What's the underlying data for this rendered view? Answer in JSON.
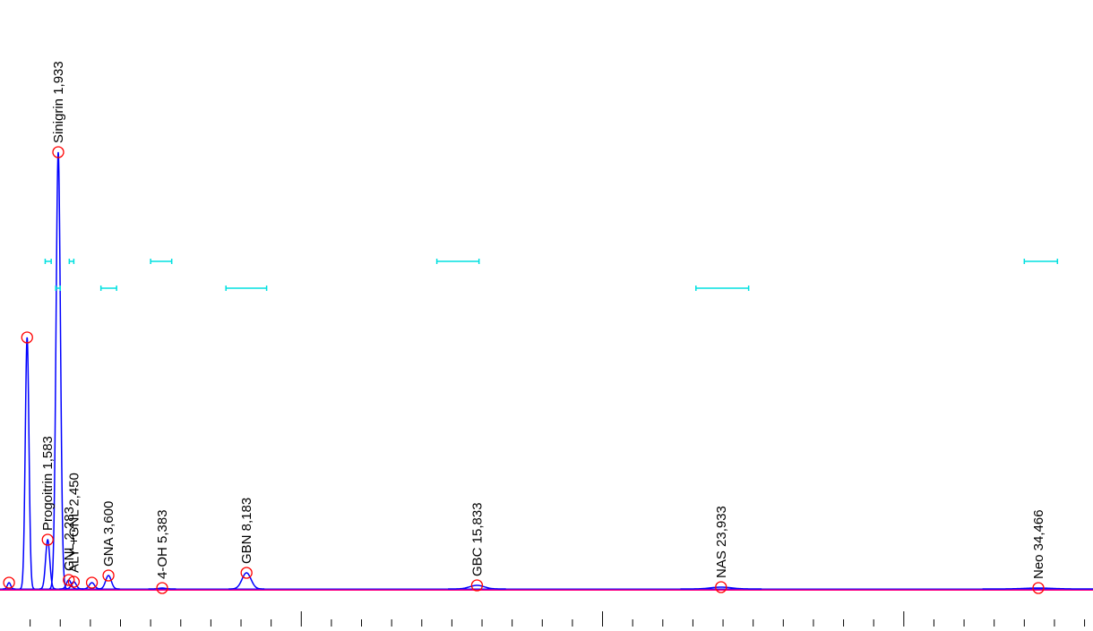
{
  "chart_data": {
    "type": "chromatogram",
    "peaks": [
      {
        "label": null,
        "time": 0.3,
        "height": 7
      },
      {
        "label": null,
        "time": 0.9,
        "height": 281
      },
      {
        "label": "Progoitrin 1,583",
        "time": 1.583,
        "height": 55
      },
      {
        "label": "Sinigrin 1,933",
        "time": 1.933,
        "height": 488
      },
      {
        "label": "GNL 2,283",
        "time": 2.283,
        "height": 10
      },
      {
        "label": "ALY +GNL 2,450",
        "time": 2.45,
        "height": 8
      },
      {
        "label": null,
        "time": 3.05,
        "height": 7
      },
      {
        "label": "GNA 3,600",
        "time": 3.6,
        "height": 15
      },
      {
        "label": "4-OH 5,383",
        "time": 5.383,
        "height": 1
      },
      {
        "label": "GBN 8,183",
        "time": 8.183,
        "height": 18
      },
      {
        "label": "GBC 15,833",
        "time": 15.833,
        "height": 4
      },
      {
        "label": "NAS 23,933",
        "time": 23.933,
        "height": 2
      },
      {
        "label": "Neo 34,466",
        "time": 34.466,
        "height": 1
      }
    ],
    "windows": [
      {
        "start": 1.5,
        "end": 1.7,
        "row": 0
      },
      {
        "start": 2.3,
        "end": 2.45,
        "row": 0
      },
      {
        "start": 5.0,
        "end": 5.7,
        "row": 0
      },
      {
        "start": 14.5,
        "end": 15.9,
        "row": 0
      },
      {
        "start": 34.0,
        "end": 35.1,
        "row": 0
      },
      {
        "start": 1.85,
        "end": 2.0,
        "row": 1
      },
      {
        "start": 3.35,
        "end": 3.87,
        "row": 1
      },
      {
        "start": 7.5,
        "end": 8.85,
        "row": 1
      },
      {
        "start": 23.1,
        "end": 24.85,
        "row": 1
      }
    ],
    "xlim": [
      0,
      36.28
    ],
    "ylim": [
      0,
      500
    ],
    "xticks": [
      1,
      2,
      3,
      4,
      5,
      6,
      7,
      8,
      9,
      10,
      11,
      12,
      13,
      14,
      15,
      16,
      17,
      18,
      19,
      20,
      21,
      22,
      23,
      24,
      25,
      26,
      27,
      28,
      29,
      30,
      31,
      32,
      33,
      34,
      35,
      36
    ],
    "trace_color": "#0000ff",
    "baseline_color": "#ff0080",
    "marker_color": "#ff0000",
    "window_color": "#00e0e0"
  }
}
